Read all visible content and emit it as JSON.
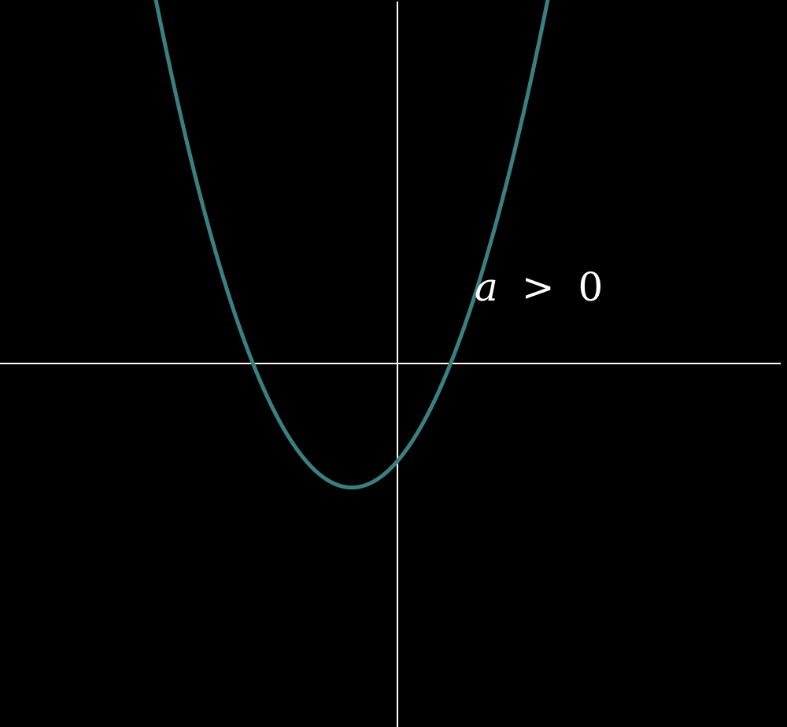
{
  "chart_data": {
    "type": "line",
    "title": "",
    "xlabel": "",
    "ylabel": "",
    "grid": false,
    "xlim": [
      -5.05,
      4.95
    ],
    "ylim": [
      -4.62,
      4.62
    ],
    "series": [
      {
        "function": "quadratic",
        "coefficients": {
          "a": 1,
          "b": 1.16,
          "c": -1.24
        },
        "roots": [
          -1.56,
          0.38
        ],
        "vertex": {
          "x": -0.58,
          "y": -1.58
        },
        "y_intercept": -1.24,
        "color": "#3a8080"
      }
    ],
    "annotations": [
      {
        "variable": "a",
        "relation": ">",
        "value": "0"
      }
    ]
  },
  "colors": {
    "background": "#000000",
    "axes": "#ffffff",
    "text": "#ffffff"
  }
}
